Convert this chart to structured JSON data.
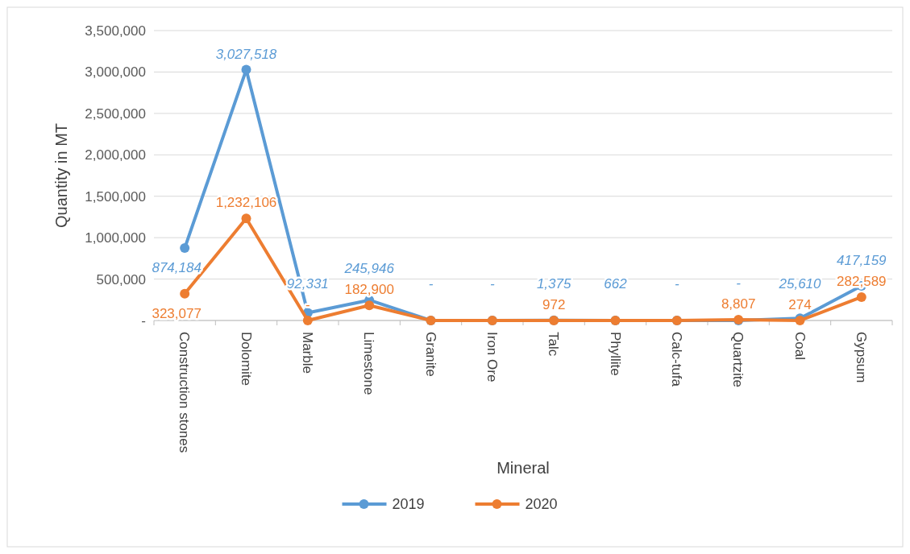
{
  "chart_data": {
    "type": "line",
    "xlabel": "Mineral",
    "ylabel": "Quantity in MT",
    "categories": [
      "Construction stones",
      "Dolomite",
      "Marble",
      "Limestone",
      "Granite",
      "Iron Ore",
      "Talc",
      "Phyllite",
      "Calc-tufa",
      "Quartzite",
      "Coal",
      "Gypsum"
    ],
    "series": [
      {
        "name": "2019",
        "color": "#5b9bd5",
        "values": [
          874184,
          3027518,
          92331,
          245946,
          0,
          0,
          1375,
          662,
          0,
          0,
          25610,
          417159
        ],
        "value_labels": [
          "874,184",
          "3,027,518",
          "92,331",
          "245,946",
          "-",
          "-",
          "1,375",
          "662",
          "-",
          "-",
          "25,610",
          "417,159"
        ]
      },
      {
        "name": "2020",
        "color": "#ed7d31",
        "values": [
          323077,
          1232106,
          0,
          182900,
          0,
          0,
          972,
          0,
          0,
          8807,
          274,
          282589
        ],
        "value_labels": [
          "323,077",
          "1,232,106",
          "-",
          "182,900",
          null,
          null,
          "972",
          null,
          null,
          "8,807",
          "274",
          "282,589"
        ]
      }
    ],
    "ylim": [
      0,
      3500000
    ],
    "yticks": [
      {
        "value": 0,
        "label": "-"
      },
      {
        "value": 500000,
        "label": "500,000"
      },
      {
        "value": 1000000,
        "label": "1,000,000"
      },
      {
        "value": 1500000,
        "label": "1,500,000"
      },
      {
        "value": 2000000,
        "label": "2,000,000"
      },
      {
        "value": 2500000,
        "label": "2,500,000"
      },
      {
        "value": 3000000,
        "label": "3,000,000"
      },
      {
        "value": 3500000,
        "label": "3,500,000"
      }
    ],
    "grid": "y",
    "legend": "bottom",
    "marker": "circle",
    "line_style": "solid"
  }
}
